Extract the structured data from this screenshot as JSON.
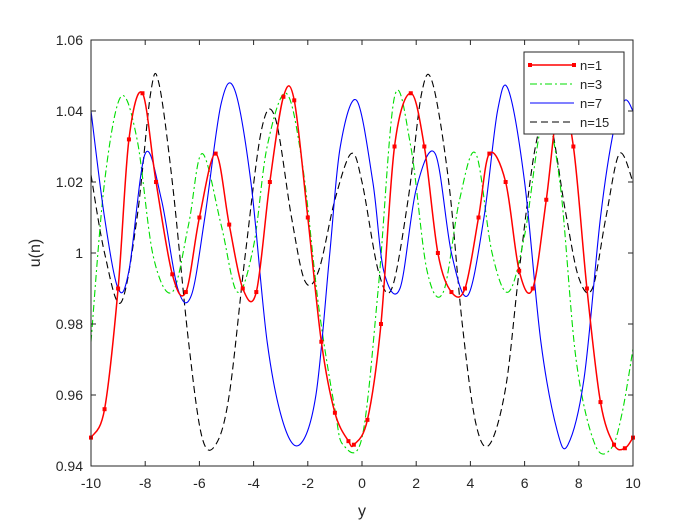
{
  "chart_data": {
    "type": "line",
    "title": "",
    "xlabel": "y",
    "ylabel": "u(n)",
    "xlim": [
      -10,
      10
    ],
    "ylim": [
      0.94,
      1.06
    ],
    "xticks": [
      -10,
      -8,
      -6,
      -4,
      -2,
      0,
      2,
      4,
      6,
      8,
      10
    ],
    "yticks": [
      0.94,
      0.96,
      0.98,
      1.0,
      1.02,
      1.04,
      1.06
    ],
    "xtick_labels": [
      "-10",
      "-8",
      "-6",
      "-4",
      "-2",
      "0",
      "2",
      "4",
      "6",
      "8",
      "10"
    ],
    "ytick_labels": [
      "0.94",
      "0.96",
      "0.98",
      "1",
      "1.02",
      "1.04",
      "1.06"
    ],
    "grid": false,
    "legend_position": "top-right",
    "series": [
      {
        "name": "n=1",
        "color": "#ff0000",
        "style": "solid",
        "marker": "square",
        "x": [
          -10,
          -9.5,
          -9,
          -8.6,
          -8.1,
          -7.6,
          -7.0,
          -6.5,
          -6.0,
          -5.4,
          -4.9,
          -4.4,
          -3.9,
          -3.4,
          -2.9,
          -2.5,
          -2.0,
          -1.5,
          -1.0,
          -0.5,
          -0.3,
          0.2,
          0.7,
          1.2,
          1.8,
          2.3,
          2.8,
          3.3,
          3.8,
          4.3,
          4.7,
          5.3,
          5.8,
          6.3,
          6.8,
          7.3,
          7.8,
          8.3,
          8.8,
          9.3,
          9.7,
          10
        ],
        "y": [
          0.948,
          0.956,
          0.99,
          1.032,
          1.045,
          1.02,
          0.994,
          0.989,
          1.01,
          1.028,
          1.008,
          0.99,
          0.989,
          1.02,
          1.044,
          1.043,
          1.01,
          0.975,
          0.955,
          0.947,
          0.946,
          0.953,
          0.98,
          1.03,
          1.045,
          1.03,
          1.0,
          0.989,
          0.99,
          1.01,
          1.028,
          1.02,
          0.995,
          0.99,
          1.015,
          1.044,
          1.03,
          0.99,
          0.958,
          0.946,
          0.945,
          0.948
        ]
      },
      {
        "name": "n=3",
        "color": "#00dd00",
        "style": "dashdot",
        "marker": "none",
        "x": [
          -10,
          -9.5,
          -8.9,
          -8.3,
          -7.7,
          -7.0,
          -6.4,
          -5.9,
          -5.2,
          -4.6,
          -4.0,
          -3.5,
          -2.8,
          -2.2,
          -1.6,
          -1.0,
          -0.7,
          0.0,
          0.6,
          1.2,
          1.8,
          2.4,
          3.0,
          3.6,
          4.2,
          4.8,
          5.4,
          6.0,
          6.7,
          7.3,
          7.9,
          8.6,
          9.2,
          9.6,
          10
        ],
        "y": [
          0.975,
          1.02,
          1.044,
          1.032,
          0.999,
          0.989,
          1.008,
          1.028,
          1.008,
          0.989,
          1.002,
          1.03,
          1.045,
          1.025,
          0.985,
          0.956,
          0.946,
          0.948,
          0.99,
          1.044,
          1.03,
          0.995,
          0.989,
          1.015,
          1.028,
          1.0,
          0.989,
          1.005,
          1.038,
          1.02,
          0.97,
          0.946,
          0.945,
          0.955,
          0.973
        ]
      },
      {
        "name": "n=7",
        "color": "#0000ff",
        "style": "solid",
        "marker": "none",
        "x": [
          -10,
          -9.5,
          -9.0,
          -8.6,
          -8.0,
          -7.4,
          -6.8,
          -6.3,
          -5.8,
          -5.2,
          -4.7,
          -4.1,
          -3.5,
          -2.9,
          -2.3,
          -1.7,
          -1.2,
          -0.8,
          -0.2,
          0.4,
          0.8,
          1.4,
          2.0,
          2.7,
          3.3,
          3.9,
          4.5,
          5.0,
          5.4,
          6.0,
          6.6,
          7.2,
          7.6,
          8.2,
          8.8,
          9.3,
          9.7,
          10
        ],
        "y": [
          1.04,
          1.01,
          0.99,
          0.995,
          1.028,
          1.015,
          0.99,
          0.988,
          1.01,
          1.042,
          1.046,
          1.02,
          0.975,
          0.952,
          0.946,
          0.96,
          0.999,
          1.03,
          1.043,
          1.02,
          0.995,
          0.99,
          1.018,
          1.028,
          1.0,
          0.988,
          1.01,
          1.04,
          1.046,
          1.02,
          0.975,
          0.95,
          0.946,
          0.965,
          1.01,
          1.035,
          1.043,
          1.04
        ]
      },
      {
        "name": "n=15",
        "color": "#000000",
        "style": "dashed",
        "marker": "none",
        "x": [
          -10,
          -9.5,
          -8.9,
          -8.3,
          -7.8,
          -7.5,
          -7.0,
          -6.4,
          -5.9,
          -5.4,
          -4.9,
          -4.3,
          -3.7,
          -3.2,
          -2.6,
          -2.1,
          -1.6,
          -1.0,
          -0.4,
          0.0,
          0.6,
          1.1,
          1.7,
          2.2,
          2.6,
          3.2,
          3.7,
          4.2,
          4.7,
          5.3,
          5.8,
          6.4,
          6.9,
          7.5,
          8.0,
          8.5,
          9.0,
          9.5,
          10
        ],
        "y": [
          1.022,
          1.0,
          0.986,
          1.01,
          1.045,
          1.048,
          1.02,
          0.975,
          0.948,
          0.946,
          0.96,
          1.0,
          1.035,
          1.038,
          1.01,
          0.992,
          0.995,
          1.015,
          1.028,
          1.02,
          0.995,
          0.99,
          1.015,
          1.045,
          1.048,
          1.02,
          0.98,
          0.952,
          0.946,
          0.962,
          0.995,
          1.03,
          1.038,
          1.012,
          0.993,
          0.99,
          1.01,
          1.028,
          1.02
        ]
      }
    ]
  }
}
